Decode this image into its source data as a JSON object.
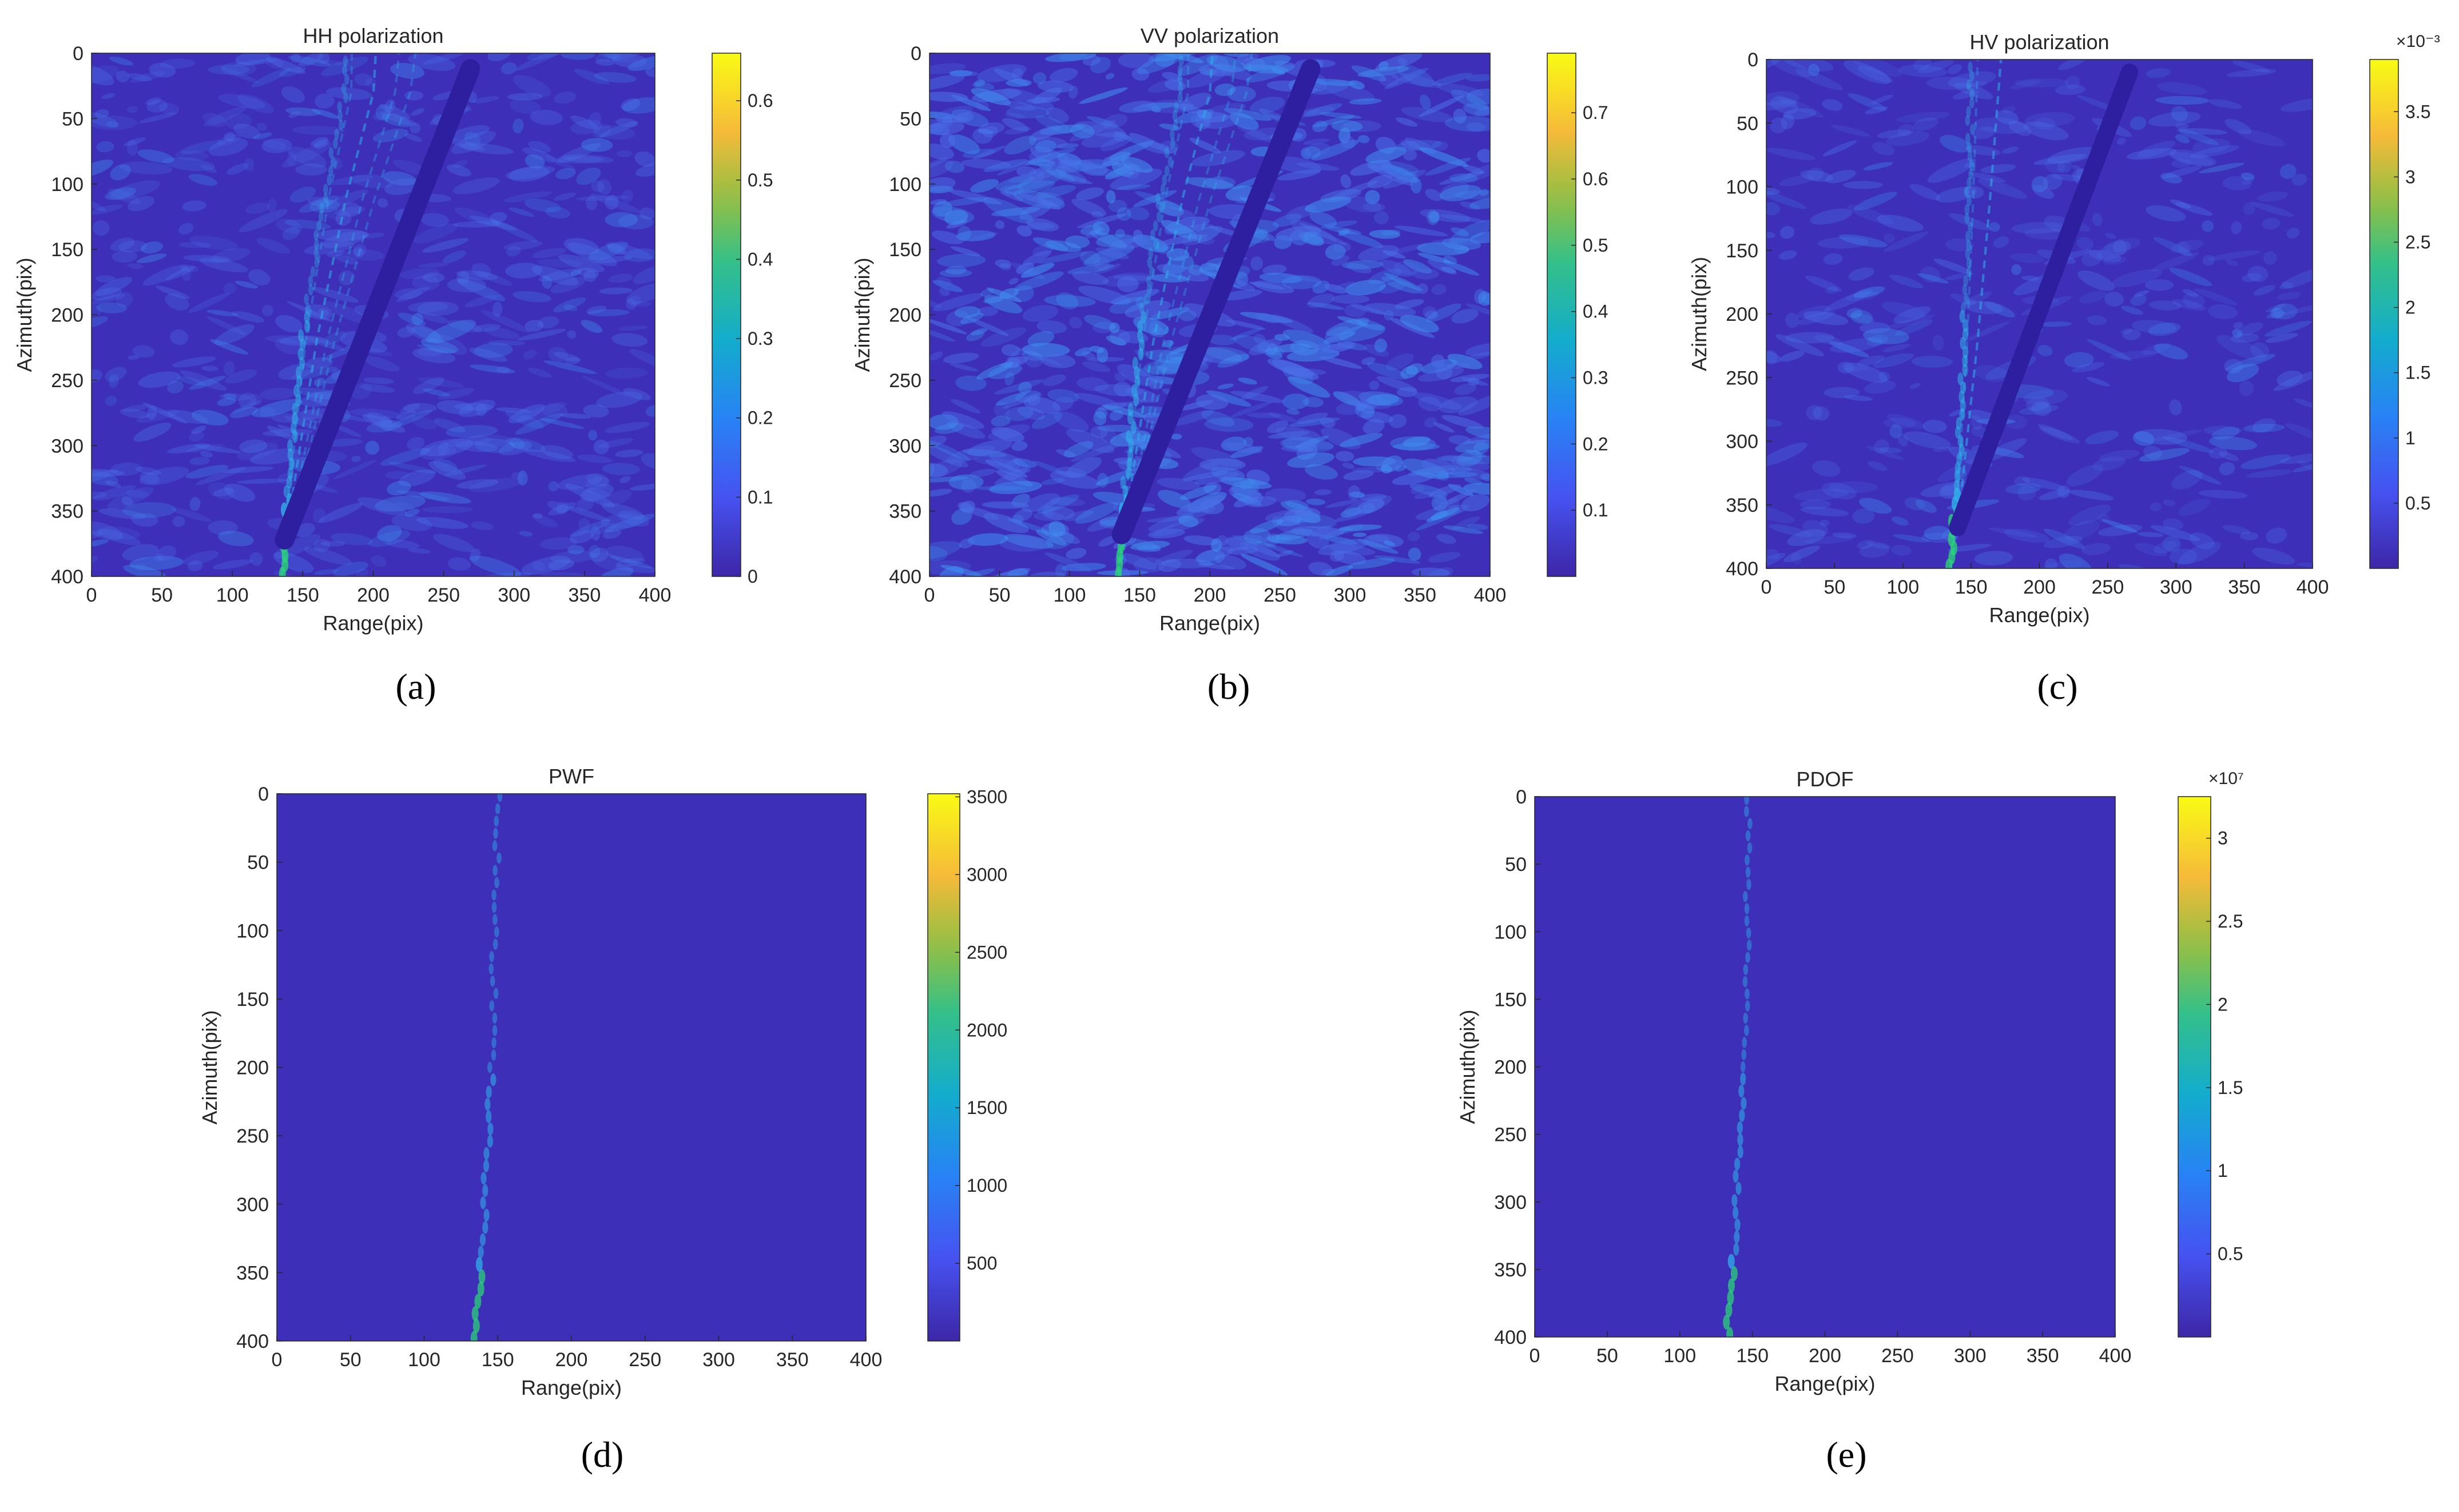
{
  "figure": {
    "heatmap_colors": {
      "background": "#3d2fb8",
      "texture_light": "#4a6ee6",
      "streak": "#2fb0e8",
      "peak": "#2ad17a",
      "shadow": "#2e1ea0"
    }
  },
  "chart_data": [
    {
      "panel": "(a)",
      "type": "heatmap",
      "title": "HH polarization",
      "xlabel": "Range(pix)",
      "ylabel": "Azimuth(pix)",
      "xlim": [
        0,
        400
      ],
      "ylim": [
        400,
        0
      ],
      "xticks": [
        "0",
        "50",
        "100",
        "150",
        "200",
        "250",
        "300",
        "350",
        "400"
      ],
      "yticks": [
        "0",
        "50",
        "100",
        "150",
        "200",
        "250",
        "300",
        "350",
        "400"
      ],
      "colorbar": {
        "min": 0,
        "max": 0.66,
        "ticks": [
          "0",
          "0.1",
          "0.2",
          "0.3",
          "0.4",
          "0.5",
          "0.6"
        ],
        "exponent": ""
      },
      "style": "textured",
      "wake_center": [
        [
          135,
          400
        ],
        [
          140,
          330
        ],
        [
          150,
          220
        ],
        [
          165,
          110
        ],
        [
          180,
          30
        ]
      ],
      "shadow_line": {
        "from": [
          137,
          372
        ],
        "to": [
          269,
          12
        ]
      }
    },
    {
      "panel": "(b)",
      "type": "heatmap",
      "title": "VV polarization",
      "xlabel": "Range(pix)",
      "ylabel": "Azimuth(pix)",
      "xlim": [
        0,
        400
      ],
      "ylim": [
        400,
        0
      ],
      "xticks": [
        "0",
        "50",
        "100",
        "150",
        "200",
        "250",
        "300",
        "350",
        "400"
      ],
      "yticks": [
        "0",
        "50",
        "100",
        "150",
        "200",
        "250",
        "300",
        "350",
        "400"
      ],
      "colorbar": {
        "min": 0,
        "max": 0.79,
        "ticks": [
          "0.1",
          "0.2",
          "0.3",
          "0.4",
          "0.5",
          "0.6",
          "0.7"
        ],
        "exponent": ""
      },
      "style": "textured-bright",
      "wake_center": [
        [
          135,
          400
        ],
        [
          140,
          330
        ],
        [
          150,
          220
        ],
        [
          165,
          110
        ],
        [
          180,
          30
        ]
      ],
      "shadow_line": {
        "from": [
          137,
          368
        ],
        "to": [
          272,
          12
        ]
      }
    },
    {
      "panel": "(c)",
      "type": "heatmap",
      "title": "HV polarization",
      "xlabel": "Range(pix)",
      "ylabel": "Azimuth(pix)",
      "xlim": [
        0,
        400
      ],
      "ylim": [
        400,
        0
      ],
      "xticks": [
        "0",
        "50",
        "100",
        "150",
        "200",
        "250",
        "300",
        "350",
        "400"
      ],
      "yticks": [
        "0",
        "50",
        "100",
        "150",
        "200",
        "250",
        "300",
        "350",
        "400"
      ],
      "colorbar": {
        "min": 0,
        "max": 3.9,
        "ticks": [
          "0.5",
          "1",
          "1.5",
          "2",
          "2.5",
          "3",
          "3.5"
        ],
        "exponent": "×10⁻³"
      },
      "style": "textured-dark",
      "wake_center": [
        [
          135,
          400
        ],
        [
          140,
          330
        ],
        [
          145,
          220
        ],
        [
          148,
          110
        ],
        [
          150,
          0
        ]
      ],
      "shadow_line": {
        "from": [
          140,
          368
        ],
        "to": [
          266,
          10
        ]
      }
    },
    {
      "panel": "(d)",
      "type": "heatmap",
      "title": "PWF",
      "xlabel": "Range(pix)",
      "ylabel": "Azimuth(pix)",
      "xlim": [
        0,
        400
      ],
      "ylim": [
        400,
        0
      ],
      "xticks": [
        "0",
        "50",
        "100",
        "150",
        "200",
        "250",
        "300",
        "350",
        "400"
      ],
      "yticks": [
        "0",
        "50",
        "100",
        "150",
        "200",
        "250",
        "300",
        "350",
        "400"
      ],
      "colorbar": {
        "min": 0,
        "max": 3520,
        "ticks": [
          "500",
          "1000",
          "1500",
          "2000",
          "2500",
          "3000",
          "3500"
        ],
        "exponent": ""
      },
      "style": "flat",
      "wake_center": [
        [
          135,
          400
        ],
        [
          140,
          330
        ],
        [
          145,
          220
        ],
        [
          148,
          110
        ],
        [
          150,
          0
        ]
      ]
    },
    {
      "panel": "(e)",
      "type": "heatmap",
      "title": "PDOF",
      "xlabel": "Range(pix)",
      "ylabel": "Azimuth(pix)",
      "xlim": [
        0,
        400
      ],
      "ylim": [
        400,
        0
      ],
      "xticks": [
        "0",
        "50",
        "100",
        "150",
        "200",
        "250",
        "300",
        "350",
        "400"
      ],
      "yticks": [
        "0",
        "50",
        "100",
        "150",
        "200",
        "250",
        "300",
        "350",
        "400"
      ],
      "colorbar": {
        "min": 0,
        "max": 3.25,
        "ticks": [
          "0.5",
          "1",
          "1.5",
          "2",
          "2.5",
          "3"
        ],
        "exponent": "×10⁷"
      },
      "style": "flat",
      "wake_center": [
        [
          133,
          400
        ],
        [
          138,
          330
        ],
        [
          143,
          220
        ],
        [
          146,
          110
        ],
        [
          148,
          0
        ]
      ]
    }
  ]
}
